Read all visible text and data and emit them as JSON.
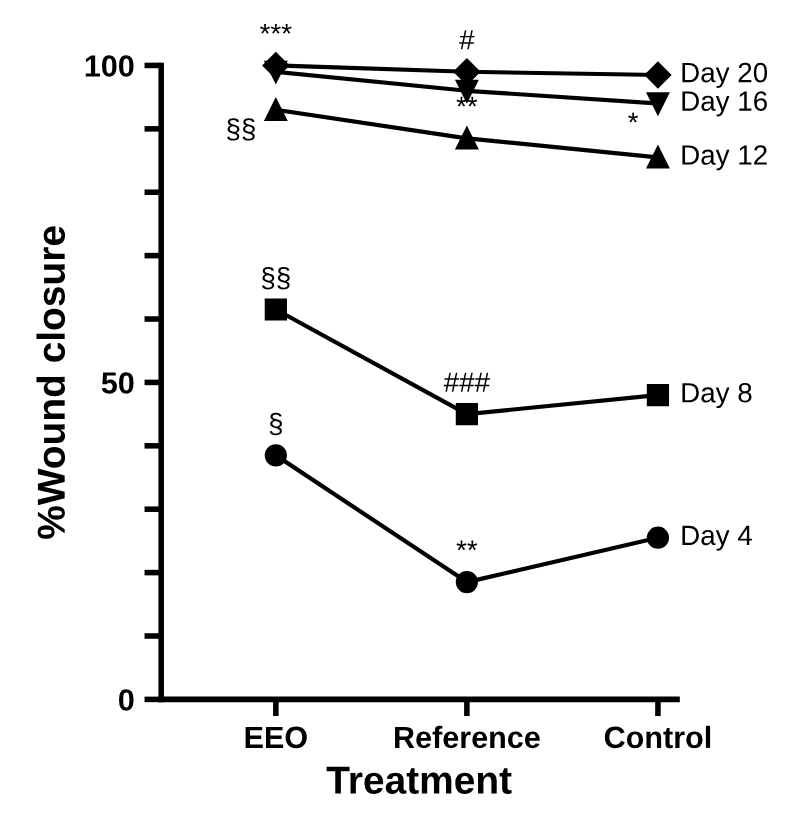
{
  "chart_data": {
    "type": "line",
    "xlabel": "Treatment",
    "ylabel": "%Wound closure",
    "categories": [
      "EEO",
      "Reference",
      "Control"
    ],
    "series": [
      {
        "name": "Day 20",
        "color": "#000000",
        "marker": "diamond",
        "values": [
          100,
          99,
          98.5
        ]
      },
      {
        "name": "Day 16",
        "color": "#000000",
        "marker": "triangle_down",
        "values": [
          99,
          96,
          94
        ]
      },
      {
        "name": "Day 12",
        "color": "#000000",
        "marker": "triangle",
        "values": [
          93,
          88.5,
          85.5
        ]
      },
      {
        "name": "Day 8",
        "color": "#000000",
        "marker": "square",
        "values": [
          61.5,
          45,
          48
        ]
      },
      {
        "name": "Day 4",
        "color": "#000000",
        "marker": "circle",
        "values": [
          38.5,
          18.5,
          25.5
        ]
      }
    ],
    "ylim": [
      0,
      100
    ],
    "yticks": [
      0,
      {
        "value": 10,
        "label": null
      },
      {
        "value": 20,
        "label": null
      },
      {
        "value": 30,
        "label": null
      },
      {
        "value": 40,
        "label": null
      },
      50,
      {
        "value": 60,
        "label": null
      },
      {
        "value": 70,
        "label": null
      },
      {
        "value": 80,
        "label": null
      },
      {
        "value": 90,
        "label": null
      },
      100
    ],
    "grid": false,
    "legend": false,
    "line_style": "solid",
    "annotations": [
      {
        "text": "***",
        "x": "EEO",
        "y": 100
      },
      {
        "text": "#",
        "x": "Reference",
        "y": 99
      },
      {
        "text": "*",
        "x": "Control",
        "y": 94
      },
      {
        "text": "§§",
        "x": "EEO",
        "y": 93
      },
      {
        "text": "**",
        "x": "Reference",
        "y": 88.5
      },
      {
        "text": "§§",
        "x": "EEO",
        "y": 61.5
      },
      {
        "text": "###",
        "x": "Reference",
        "y": 45
      },
      {
        "text": "§",
        "x": "EEO",
        "y": 38.5
      },
      {
        "text": "**",
        "x": "Reference",
        "y": 18.5
      }
    ]
  }
}
